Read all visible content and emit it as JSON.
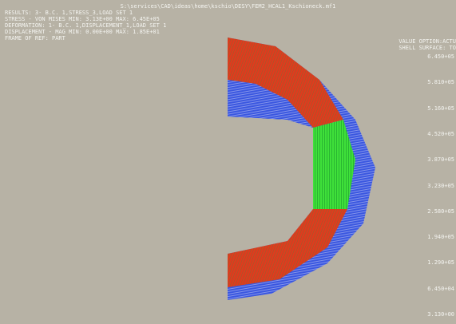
{
  "header": {
    "title": "S:\\services\\CAD\\ideas\\home\\kschio\\DESY\\FEM2_HCAL1_Kschioneck.mf1"
  },
  "info": [
    "RESULTS: 3- B.C. 1,STRESS_3,LOAD SET 1",
    "STRESS - VON MISES MIN: 3.13E+00 MAX: 6.45E+05",
    "DEFORMATION: 1- B.C. 1,DISPLACEMENT_1,LOAD SET 1",
    "DISPLACEMENT - MAG MIN: 0.00E+00 MAX: 1.85E+01",
    "FRAME OF REF: PART"
  ],
  "options": [
    "VALUE OPTION:ACTU",
    "SHELL SURFACE: TO"
  ],
  "scale": [
    "6.450+05",
    "5.810+05",
    "5.160+05",
    "4.520+05",
    "3.870+05",
    "3.230+05",
    "2.580+05",
    "1.940+05",
    "1.290+05",
    "6.450+04",
    "3.130+00"
  ]
}
